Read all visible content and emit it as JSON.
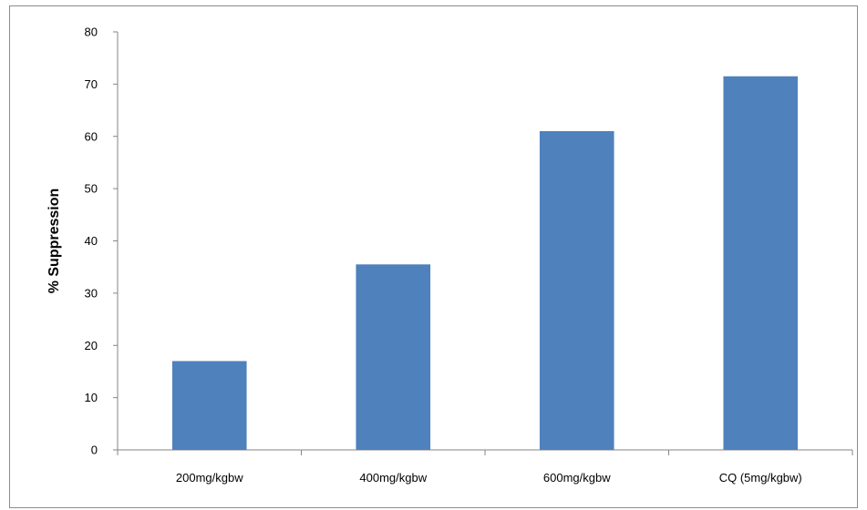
{
  "chart_data": {
    "type": "bar",
    "title": "",
    "xlabel": "",
    "ylabel": "% Suppression",
    "categories": [
      "200mg/kgbw",
      "400mg/kgbw",
      "600mg/kgbw",
      "CQ (5mg/kgbw)"
    ],
    "values": [
      17,
      35.5,
      61,
      71.5
    ],
    "ylim": [
      0,
      80
    ],
    "yticks": [
      "0",
      "10",
      "20",
      "30",
      "40",
      "50",
      "60",
      "70",
      "80"
    ],
    "grid": false,
    "legend": "none",
    "bar_color": "#4f81bd"
  }
}
